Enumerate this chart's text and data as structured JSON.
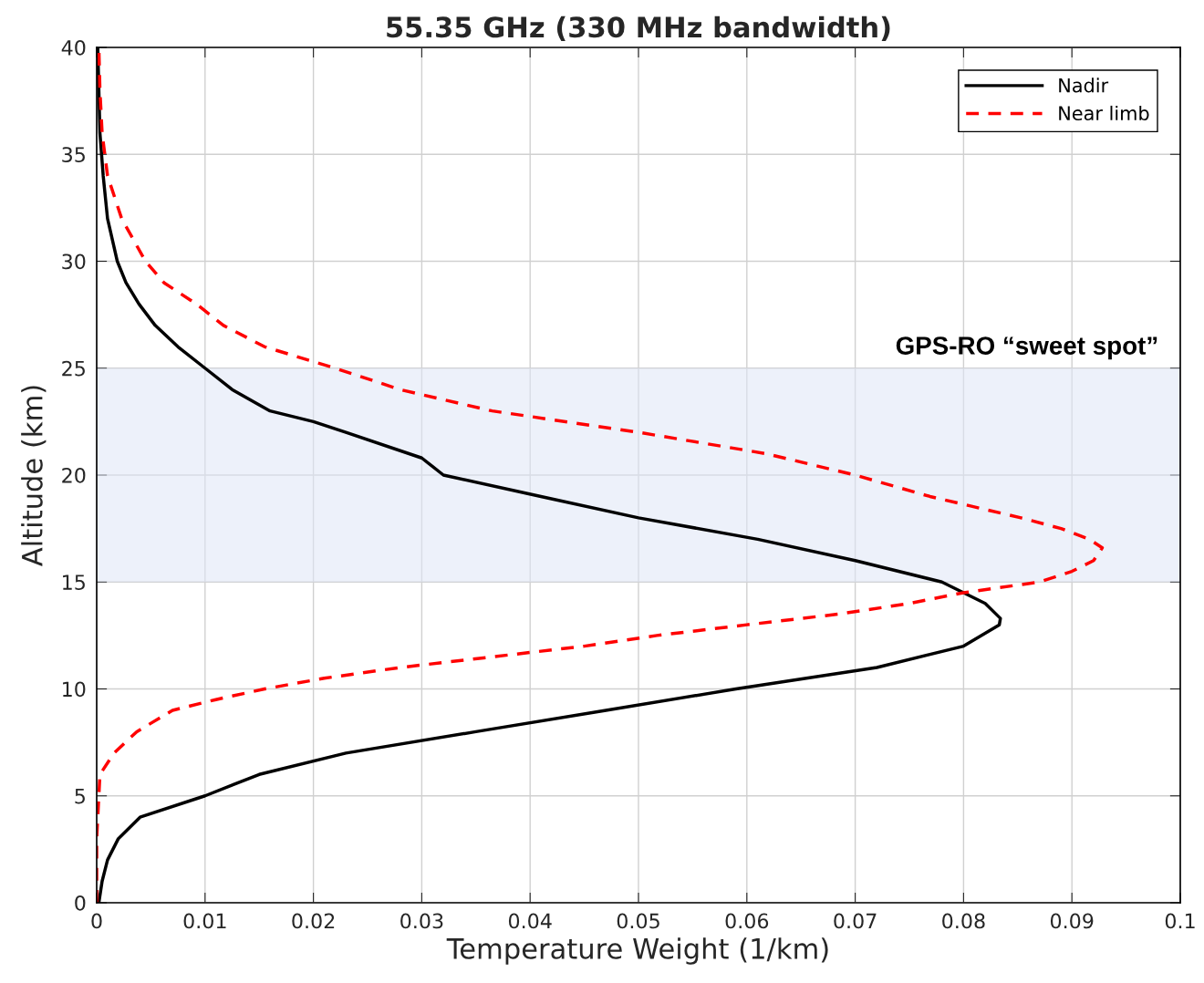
{
  "chart_data": {
    "type": "line",
    "title": "55.35 GHz (330 MHz bandwidth)",
    "xlabel": "Temperature Weight (1/km)",
    "ylabel": "Altitude (km)",
    "xlim": [
      0,
      0.1
    ],
    "xticks": [
      0,
      0.01,
      0.02,
      0.03,
      0.04,
      0.05,
      0.06,
      0.07,
      0.08,
      0.09,
      0.1
    ],
    "ylim": [
      0,
      40
    ],
    "yticks": [
      0,
      5,
      10,
      15,
      20,
      25,
      30,
      35,
      40
    ],
    "grid": true,
    "legend": "top right",
    "series": [
      {
        "name": "Nadir",
        "color": "#000000",
        "line_style": "solid",
        "x": [
          0.0002,
          0.0005,
          0.001,
          0.002,
          0.004,
          0.01,
          0.015,
          0.023,
          0.035,
          0.047,
          0.059,
          0.072,
          0.08,
          0.0833,
          0.0834,
          0.082,
          0.078,
          0.07,
          0.061,
          0.05,
          0.041,
          0.032,
          0.03,
          0.023,
          0.02,
          0.016,
          0.0125,
          0.01,
          0.0075,
          0.0054,
          0.0039,
          0.0027,
          0.0019,
          0.001,
          0.0006,
          0.0003,
          0.0002,
          0.0001
        ],
        "values": [
          0,
          1,
          2,
          3,
          4,
          5,
          6,
          7,
          8,
          9,
          10,
          11,
          12,
          13,
          13.3,
          14,
          15,
          16,
          17,
          18,
          19,
          20,
          20.8,
          22,
          22.5,
          23,
          24,
          25,
          26,
          27,
          28,
          29,
          30,
          32,
          34,
          36,
          38,
          40
        ]
      },
      {
        "name": "Near limb",
        "color": "#ff0000",
        "line_style": "dashed",
        "x": [
          0,
          0,
          0.0002,
          0.0003,
          0.0016,
          0.0037,
          0.007,
          0.011,
          0.0155,
          0.021,
          0.028,
          0.0365,
          0.045,
          0.0517,
          0.06,
          0.0685,
          0.075,
          0.08,
          0.087,
          0.09,
          0.092,
          0.0928,
          0.0916,
          0.089,
          0.0853,
          0.0769,
          0.07,
          0.0618,
          0.05,
          0.0365,
          0.028,
          0.022,
          0.0155,
          0.0117,
          0.0092,
          0.0062,
          0.0045,
          0.0023,
          0.001,
          0.0005,
          0.0003,
          0.0002
        ],
        "values": [
          0,
          3,
          5,
          6,
          7,
          8,
          9,
          9.5,
          10,
          10.5,
          11,
          11.5,
          12,
          12.5,
          13,
          13.5,
          14,
          14.5,
          15,
          15.5,
          16,
          16.6,
          17,
          17.5,
          18,
          19,
          20,
          21,
          22,
          23,
          24,
          25,
          26,
          27,
          28,
          29,
          30,
          32,
          34,
          36,
          38,
          40
        ]
      }
    ],
    "bands": [
      {
        "axis": "y",
        "from": 15,
        "to": 25,
        "label": "GPS-RO “sweet spot”",
        "color": "#dfe6f5"
      }
    ]
  }
}
